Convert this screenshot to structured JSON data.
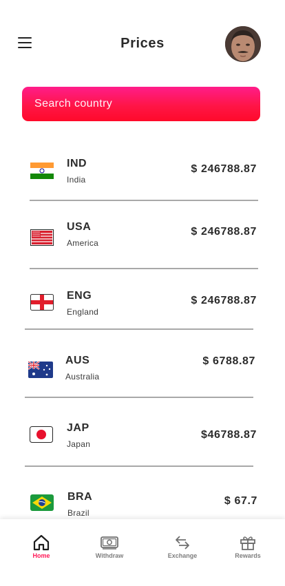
{
  "header": {
    "title": "Prices"
  },
  "search": {
    "placeholder": "Search country"
  },
  "countries": [
    {
      "code": "IND",
      "name": "India",
      "price": "$ 246788.87",
      "flag": "india-flag"
    },
    {
      "code": "USA",
      "name": "America",
      "price": "$ 246788.87",
      "flag": "usa-flag"
    },
    {
      "code": "ENG",
      "name": "England",
      "price": "$ 246788.87",
      "flag": "england-flag"
    },
    {
      "code": "AUS",
      "name": "Australia",
      "price": "$ 6788.87",
      "flag": "australia-flag"
    },
    {
      "code": "JAP",
      "name": "Japan",
      "price": "$46788.87",
      "flag": "japan-flag"
    },
    {
      "code": "BRA",
      "name": "Brazil",
      "price": "$ 67.7",
      "flag": "brazil-flag"
    }
  ],
  "nav": [
    {
      "label": "Home",
      "icon": "home-icon",
      "active": true
    },
    {
      "label": "Withdraw",
      "icon": "banknote-icon",
      "active": false
    },
    {
      "label": "Exchange",
      "icon": "exchange-arrows-icon",
      "active": false
    },
    {
      "label": "Rewards",
      "icon": "gift-icon",
      "active": false
    }
  ],
  "colors": {
    "accent": "#ff1756",
    "search_top": "#ff1d8a",
    "search_bottom": "#ff0a2a",
    "divider": "#a8a8a8"
  }
}
